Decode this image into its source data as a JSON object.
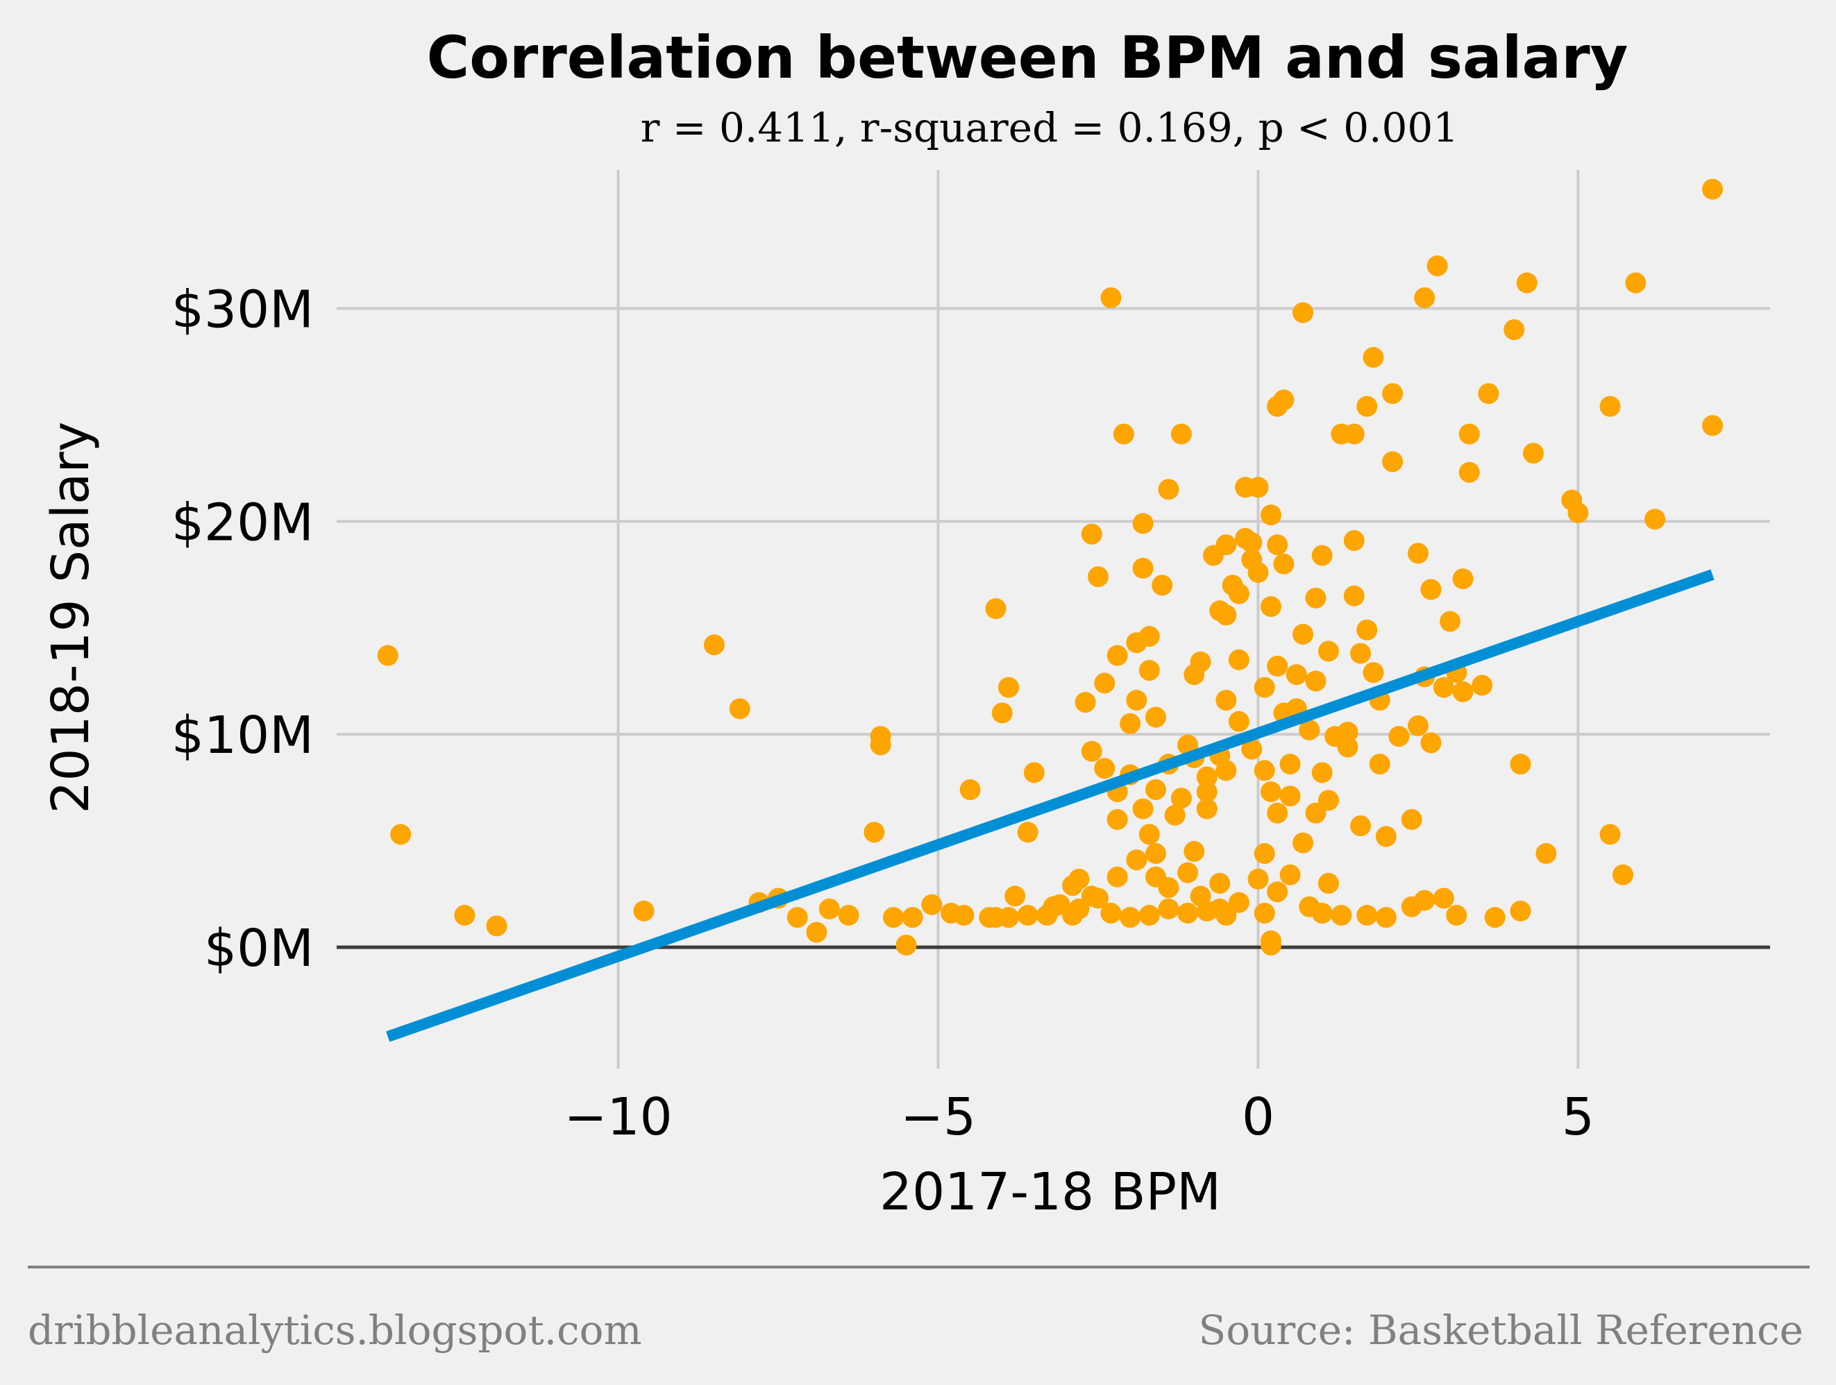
{
  "chart_data": {
    "type": "scatter",
    "title": "Correlation between BPM and salary",
    "subtitle": "r = 0.411, r-squared = 0.169, p < 0.001",
    "xlabel": "2017-18 BPM",
    "ylabel": "2018-19 Salary",
    "xlim": [
      -14.4,
      8.0
    ],
    "ylim": [
      -5.7,
      36.5
    ],
    "x_ticks": [
      -10,
      -5,
      0,
      5
    ],
    "x_tick_labels": [
      "−10",
      "−5",
      "0",
      "5"
    ],
    "y_ticks": [
      0,
      10,
      20,
      30
    ],
    "y_tick_labels": [
      "$0M",
      "$10M",
      "$20M",
      "$30M"
    ],
    "grid": true,
    "point_color": "#ffa500",
    "trend_color": "#008fd5",
    "trend_line": {
      "x": [
        -13.6,
        7.1
      ],
      "y": [
        -4.2,
        17.5
      ]
    },
    "points": [
      [
        -13.6,
        13.7
      ],
      [
        -13.4,
        5.3
      ],
      [
        -12.4,
        1.5
      ],
      [
        -11.9,
        1.0
      ],
      [
        -9.6,
        1.7
      ],
      [
        -8.5,
        14.2
      ],
      [
        -8.1,
        11.2
      ],
      [
        -7.8,
        2.1
      ],
      [
        -7.5,
        2.3
      ],
      [
        -7.2,
        1.4
      ],
      [
        -6.9,
        0.7
      ],
      [
        -6.7,
        1.8
      ],
      [
        -6.4,
        1.5
      ],
      [
        -6.0,
        5.4
      ],
      [
        -5.9,
        9.9
      ],
      [
        -5.9,
        9.5
      ],
      [
        -5.7,
        1.4
      ],
      [
        -5.5,
        0.1
      ],
      [
        -5.4,
        1.4
      ],
      [
        -5.1,
        2.0
      ],
      [
        -4.8,
        1.6
      ],
      [
        -4.6,
        1.5
      ],
      [
        -4.5,
        7.4
      ],
      [
        -4.2,
        1.4
      ],
      [
        -4.1,
        15.9
      ],
      [
        -4.0,
        11.0
      ],
      [
        -3.9,
        12.2
      ],
      [
        -3.8,
        2.4
      ],
      [
        -3.6,
        5.4
      ],
      [
        -3.5,
        8.2
      ],
      [
        -3.3,
        1.5
      ],
      [
        -3.1,
        2.0
      ],
      [
        -2.9,
        2.9
      ],
      [
        -2.8,
        1.8
      ],
      [
        -2.7,
        11.5
      ],
      [
        -2.6,
        19.4
      ],
      [
        -2.5,
        17.4
      ],
      [
        -2.4,
        12.4
      ],
      [
        -2.3,
        30.5
      ],
      [
        -2.2,
        13.7
      ],
      [
        -2.2,
        6.0
      ],
      [
        -2.1,
        24.1
      ],
      [
        -2.0,
        10.5
      ],
      [
        -1.9,
        14.3
      ],
      [
        -1.9,
        11.6
      ],
      [
        -1.8,
        19.9
      ],
      [
        -1.8,
        17.8
      ],
      [
        -1.7,
        14.6
      ],
      [
        -1.7,
        13.0
      ],
      [
        -1.6,
        10.8
      ],
      [
        -1.6,
        4.4
      ],
      [
        -1.5,
        17.0
      ],
      [
        -1.4,
        21.5
      ],
      [
        -1.3,
        6.2
      ],
      [
        -1.2,
        24.1
      ],
      [
        -1.1,
        9.5
      ],
      [
        -1.0,
        4.5
      ],
      [
        -0.9,
        13.4
      ],
      [
        -0.8,
        7.3
      ],
      [
        -0.8,
        6.5
      ],
      [
        -0.7,
        18.4
      ],
      [
        -0.6,
        15.8
      ],
      [
        -0.6,
        1.8
      ],
      [
        -0.5,
        18.9
      ],
      [
        -0.5,
        11.6
      ],
      [
        -0.4,
        17.0
      ],
      [
        -0.3,
        13.5
      ],
      [
        -0.2,
        21.6
      ],
      [
        -0.2,
        19.2
      ],
      [
        -0.1,
        18.2
      ],
      [
        0.0,
        21.6
      ],
      [
        0.0,
        17.6
      ],
      [
        0.1,
        12.2
      ],
      [
        0.1,
        4.4
      ],
      [
        0.2,
        20.3
      ],
      [
        0.2,
        16.0
      ],
      [
        0.2,
        0.3
      ],
      [
        0.3,
        25.4
      ],
      [
        0.3,
        13.2
      ],
      [
        0.4,
        25.7
      ],
      [
        0.4,
        18.0
      ],
      [
        0.5,
        8.6
      ],
      [
        0.6,
        12.8
      ],
      [
        0.7,
        29.8
      ],
      [
        0.7,
        14.7
      ],
      [
        0.8,
        10.2
      ],
      [
        0.9,
        16.4
      ],
      [
        1.0,
        8.2
      ],
      [
        1.0,
        18.4
      ],
      [
        1.1,
        13.9
      ],
      [
        1.1,
        6.9
      ],
      [
        1.2,
        9.9
      ],
      [
        1.3,
        24.1
      ],
      [
        1.4,
        9.4
      ],
      [
        1.5,
        24.1
      ],
      [
        1.5,
        19.1
      ],
      [
        1.5,
        16.5
      ],
      [
        1.6,
        13.8
      ],
      [
        1.6,
        5.7
      ],
      [
        1.7,
        25.4
      ],
      [
        1.8,
        27.7
      ],
      [
        1.8,
        12.9
      ],
      [
        1.9,
        8.6
      ],
      [
        2.0,
        5.2
      ],
      [
        2.1,
        26.0
      ],
      [
        2.1,
        22.8
      ],
      [
        2.2,
        9.9
      ],
      [
        2.4,
        6.0
      ],
      [
        2.5,
        18.5
      ],
      [
        2.6,
        30.5
      ],
      [
        2.7,
        16.8
      ],
      [
        2.7,
        9.6
      ],
      [
        2.8,
        32.0
      ],
      [
        3.0,
        15.3
      ],
      [
        3.2,
        17.3
      ],
      [
        3.2,
        12.0
      ],
      [
        3.3,
        24.1
      ],
      [
        3.3,
        22.3
      ],
      [
        3.5,
        12.3
      ],
      [
        3.6,
        26.0
      ],
      [
        3.7,
        1.4
      ],
      [
        4.0,
        29.0
      ],
      [
        4.1,
        8.6
      ],
      [
        4.1,
        1.7
      ],
      [
        4.2,
        31.2
      ],
      [
        4.3,
        23.2
      ],
      [
        4.5,
        4.4
      ],
      [
        4.9,
        21.0
      ],
      [
        5.0,
        20.4
      ],
      [
        5.5,
        25.4
      ],
      [
        5.5,
        5.3
      ],
      [
        5.7,
        3.4
      ],
      [
        5.9,
        31.2
      ],
      [
        6.2,
        20.1
      ],
      [
        7.1,
        35.6
      ],
      [
        7.1,
        24.5
      ],
      [
        -2.6,
        9.2
      ],
      [
        -2.4,
        8.4
      ],
      [
        -2.2,
        7.3
      ],
      [
        -2.0,
        8.1
      ],
      [
        -1.8,
        6.5
      ],
      [
        -1.7,
        5.3
      ],
      [
        -1.6,
        7.4
      ],
      [
        -1.4,
        8.6
      ],
      [
        -1.2,
        7.0
      ],
      [
        -1.0,
        8.9
      ],
      [
        -0.8,
        8.0
      ],
      [
        -0.6,
        9.0
      ],
      [
        -0.5,
        8.3
      ],
      [
        -0.3,
        10.6
      ],
      [
        -0.1,
        9.3
      ],
      [
        0.1,
        8.3
      ],
      [
        0.2,
        7.3
      ],
      [
        0.3,
        6.3
      ],
      [
        0.5,
        7.1
      ],
      [
        0.7,
        4.9
      ],
      [
        0.9,
        6.3
      ],
      [
        1.1,
        3.0
      ],
      [
        -2.8,
        3.2
      ],
      [
        -2.5,
        2.3
      ],
      [
        -2.2,
        3.3
      ],
      [
        -1.9,
        4.1
      ],
      [
        -1.6,
        3.3
      ],
      [
        -1.4,
        2.8
      ],
      [
        -1.1,
        3.5
      ],
      [
        -0.9,
        2.4
      ],
      [
        -0.6,
        3.0
      ],
      [
        -0.3,
        2.1
      ],
      [
        0.0,
        3.2
      ],
      [
        0.3,
        2.6
      ],
      [
        0.5,
        3.4
      ],
      [
        0.8,
        1.9
      ],
      [
        1.0,
        1.6
      ],
      [
        1.3,
        1.5
      ],
      [
        1.7,
        1.5
      ],
      [
        2.0,
        1.4
      ],
      [
        2.4,
        1.9
      ],
      [
        2.6,
        2.2
      ],
      [
        2.9,
        2.3
      ],
      [
        3.1,
        1.5
      ],
      [
        -3.2,
        1.9
      ],
      [
        -2.9,
        1.5
      ],
      [
        -2.6,
        2.4
      ],
      [
        -2.3,
        1.6
      ],
      [
        -2.0,
        1.4
      ],
      [
        -1.7,
        1.5
      ],
      [
        -1.4,
        1.8
      ],
      [
        -1.1,
        1.6
      ],
      [
        -0.8,
        1.7
      ],
      [
        -0.5,
        1.5
      ],
      [
        0.1,
        1.6
      ],
      [
        0.2,
        0.1
      ],
      [
        -3.6,
        1.5
      ],
      [
        -3.9,
        1.4
      ],
      [
        -4.1,
        1.4
      ],
      [
        2.6,
        12.7
      ],
      [
        2.9,
        12.2
      ],
      [
        3.1,
        12.9
      ],
      [
        1.4,
        10.1
      ],
      [
        2.5,
        10.4
      ],
      [
        0.6,
        11.2
      ],
      [
        0.4,
        11.0
      ],
      [
        -0.3,
        16.6
      ],
      [
        -0.5,
        15.6
      ],
      [
        1.7,
        14.9
      ],
      [
        -1.0,
        12.8
      ],
      [
        0.9,
        12.5
      ],
      [
        1.9,
        11.6
      ],
      [
        -0.1,
        19.0
      ],
      [
        0.3,
        18.9
      ]
    ]
  },
  "footer": {
    "left": "dribbleanalytics.blogspot.com",
    "right": "Source: Basketball Reference"
  }
}
